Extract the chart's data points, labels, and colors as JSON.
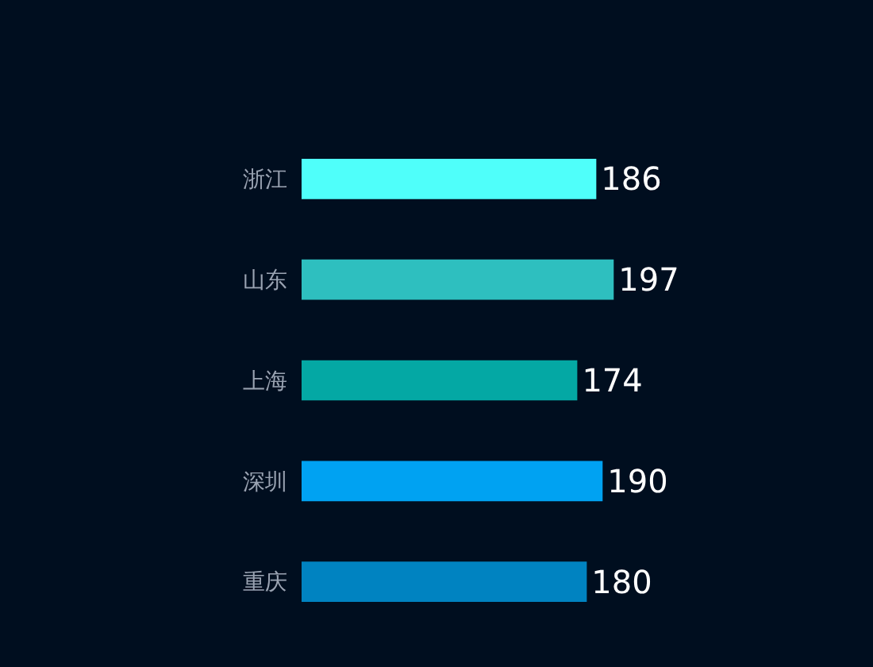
{
  "chart_data": {
    "type": "bar",
    "orientation": "horizontal",
    "categories": [
      "浙江",
      "山东",
      "上海",
      "深圳",
      "重庆"
    ],
    "values": [
      186,
      197,
      174,
      190,
      180
    ],
    "colors": [
      "#4ffffa",
      "#2ebfbf",
      "#04a8a4",
      "#00a2f2",
      "#0083c1"
    ],
    "data_labels": true,
    "legend": false
  }
}
